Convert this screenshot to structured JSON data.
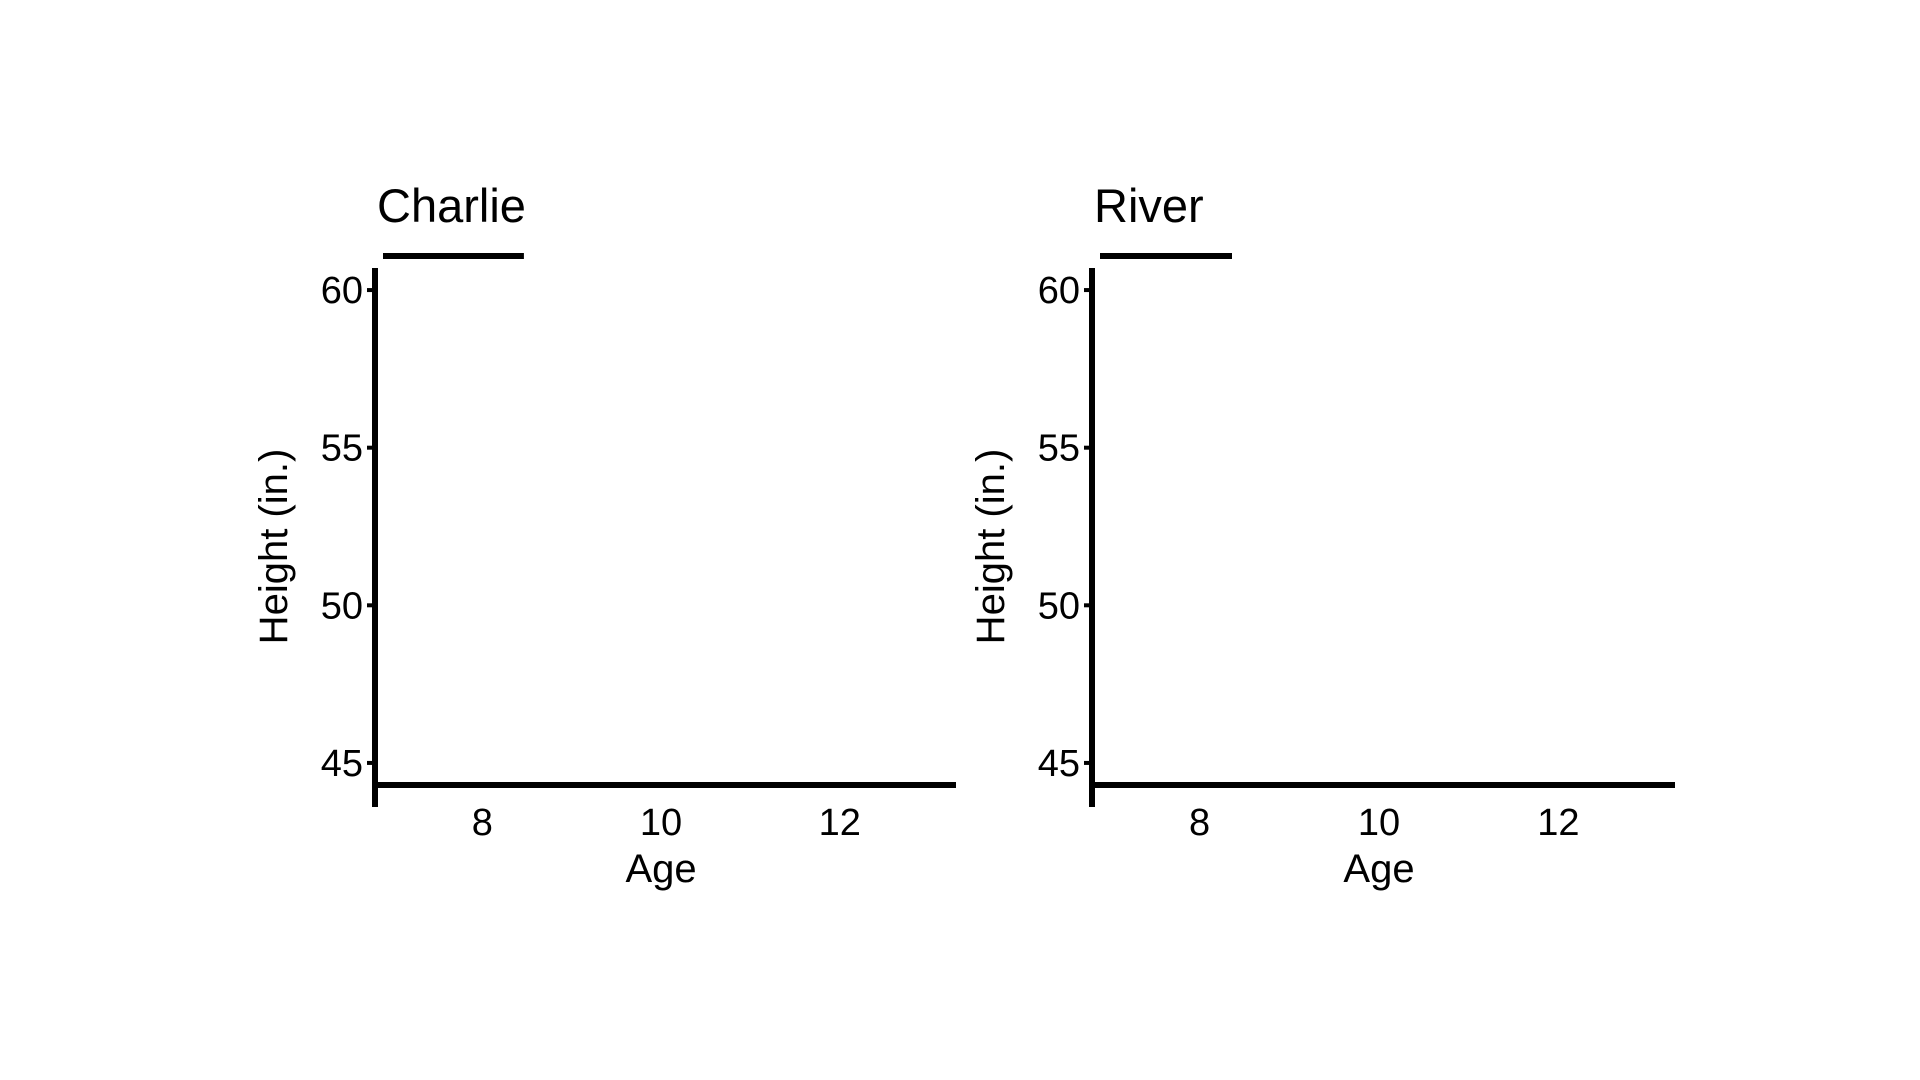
{
  "chart_data": [
    {
      "type": "line",
      "title": "Charlie",
      "xlabel": "Age",
      "ylabel": "Height (in.)",
      "xticks": [
        8,
        10,
        12
      ],
      "yticks": [
        45,
        50,
        55,
        60
      ],
      "xlim": [
        6.8,
        13.3
      ],
      "ylim": [
        44.3,
        60.7
      ],
      "series": []
    },
    {
      "type": "line",
      "title": "River",
      "xlabel": "Age",
      "ylabel": "Height (in.)",
      "xticks": [
        8,
        10,
        12
      ],
      "yticks": [
        45,
        50,
        55,
        60
      ],
      "xlim": [
        6.8,
        13.3
      ],
      "ylim": [
        44.3,
        60.7
      ],
      "series": []
    }
  ],
  "colors": {
    "axis": "#000000",
    "background": "#ffffff"
  }
}
